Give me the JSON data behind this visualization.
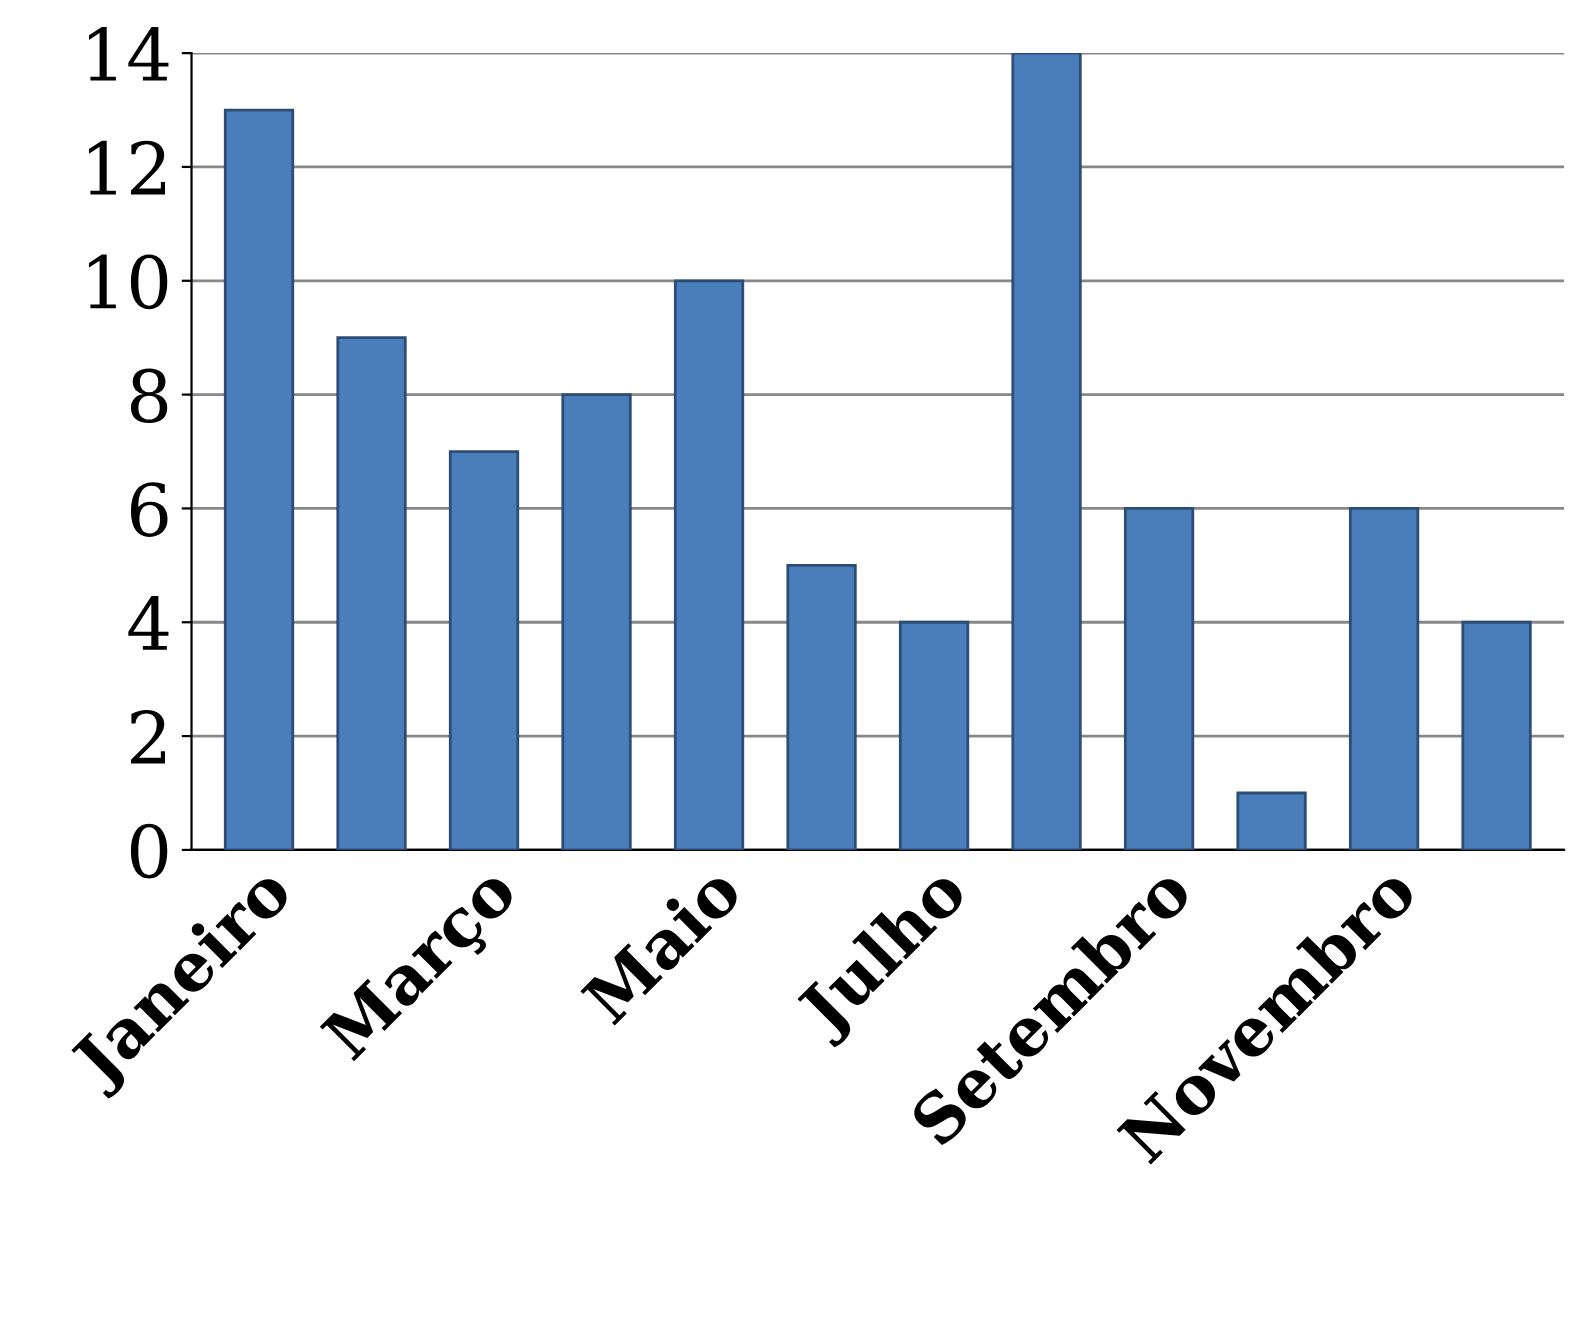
{
  "chart_data": {
    "type": "bar",
    "categories": [
      "Janeiro",
      null,
      "Março",
      null,
      "Maio",
      null,
      "Julho",
      null,
      "Setembro",
      null,
      "Novembro",
      null
    ],
    "values": [
      13,
      9,
      7,
      8,
      10,
      5,
      4,
      14,
      6,
      1,
      6,
      4
    ],
    "color": "#4a7ebb",
    "ylim": [
      0,
      14
    ],
    "yticks": [
      0,
      2,
      4,
      6,
      8,
      10,
      12,
      14
    ],
    "grid": "y",
    "legend": false
  }
}
